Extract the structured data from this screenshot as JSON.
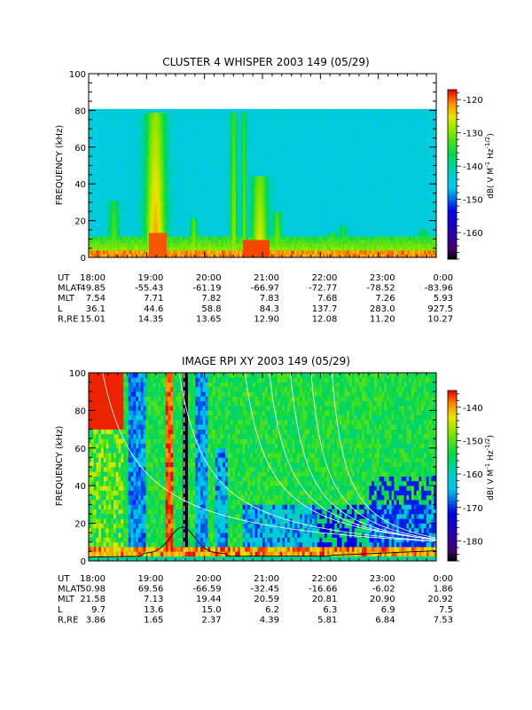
{
  "chart_data": [
    {
      "type": "heatmap",
      "title": "CLUSTER 4 WHISPER 2003 149 (05/29)",
      "ylabel": "FREQUENCY (kHz)",
      "ylim": [
        0,
        100
      ],
      "yticks": [
        "0",
        "20",
        "40",
        "60",
        "80",
        "100"
      ],
      "xticks": [
        "18:00",
        "19:00",
        "20:00",
        "21:00",
        "22:00",
        "23:00",
        "0:00"
      ],
      "colorbar": {
        "label_main": "dB( V M",
        "label_sup1": "-1",
        "label_mid": " Hz",
        "label_sup2": "-1/2",
        "label_end": ")",
        "range": [
          -168,
          -117
        ],
        "ticks": [
          "-120",
          "-130",
          "-140",
          "-150",
          "-160"
        ]
      },
      "data_top_khz": 80,
      "ephemeris": [
        {
          "label": "UT",
          "values": [
            "18:00",
            "19:00",
            "20:00",
            "21:00",
            "22:00",
            "23:00",
            "0:00"
          ]
        },
        {
          "label": "MLAT",
          "values": [
            "-49.85",
            "-55.43",
            "-61.19",
            "-66.97",
            "-72.77",
            "-78.52",
            "-83.96"
          ]
        },
        {
          "label": "MLT",
          "values": [
            "7.54",
            "7.71",
            "7.82",
            "7.83",
            "7.68",
            "7.26",
            "5.93"
          ]
        },
        {
          "label": "L",
          "values": [
            "36.1",
            "44.6",
            "58.8",
            "84.3",
            "137.7",
            "283.0",
            "927.5"
          ]
        },
        {
          "label": "R,RE",
          "values": [
            "15.01",
            "14.35",
            "13.65",
            "12.90",
            "12.08",
            "11.20",
            "10.27"
          ]
        }
      ]
    },
    {
      "type": "heatmap",
      "title": "IMAGE RPI XY 2003 149 (05/29)",
      "ylabel": "FREQUENCY (kHz)",
      "ylim": [
        0,
        100
      ],
      "yticks": [
        "0",
        "20",
        "40",
        "60",
        "80",
        "100"
      ],
      "xticks": [
        "18:00",
        "19:00",
        "20:00",
        "21:00",
        "22:00",
        "23:00",
        "0:00"
      ],
      "colorbar": {
        "label_main": "dB( V M",
        "label_sup1": "-1",
        "label_mid": " Hz",
        "label_sup2": "-1/2",
        "label_end": ")",
        "range": [
          -186,
          -135
        ],
        "ticks": [
          "-140",
          "-150",
          "-160",
          "-170",
          "-180"
        ]
      },
      "ephemeris": [
        {
          "label": "UT",
          "values": [
            "18:00",
            "19:00",
            "20:00",
            "21:00",
            "22:00",
            "23:00",
            "0:00"
          ]
        },
        {
          "label": "MLAT",
          "values": [
            "50.98",
            "69.56",
            "-66.59",
            "-32.45",
            "-16.66",
            "-6.02",
            "1.86"
          ]
        },
        {
          "label": "MLT",
          "values": [
            "21.58",
            "7.13",
            "19.44",
            "20.59",
            "20.81",
            "20.90",
            "20.92"
          ]
        },
        {
          "label": "L",
          "values": [
            "9.7",
            "13.6",
            "15.0",
            "6.2",
            "6.3",
            "6.9",
            "7.5"
          ]
        },
        {
          "label": "R,RE",
          "values": [
            "3.86",
            "1.65",
            "2.37",
            "4.39",
            "5.81",
            "6.84",
            "7.53"
          ]
        }
      ]
    }
  ]
}
